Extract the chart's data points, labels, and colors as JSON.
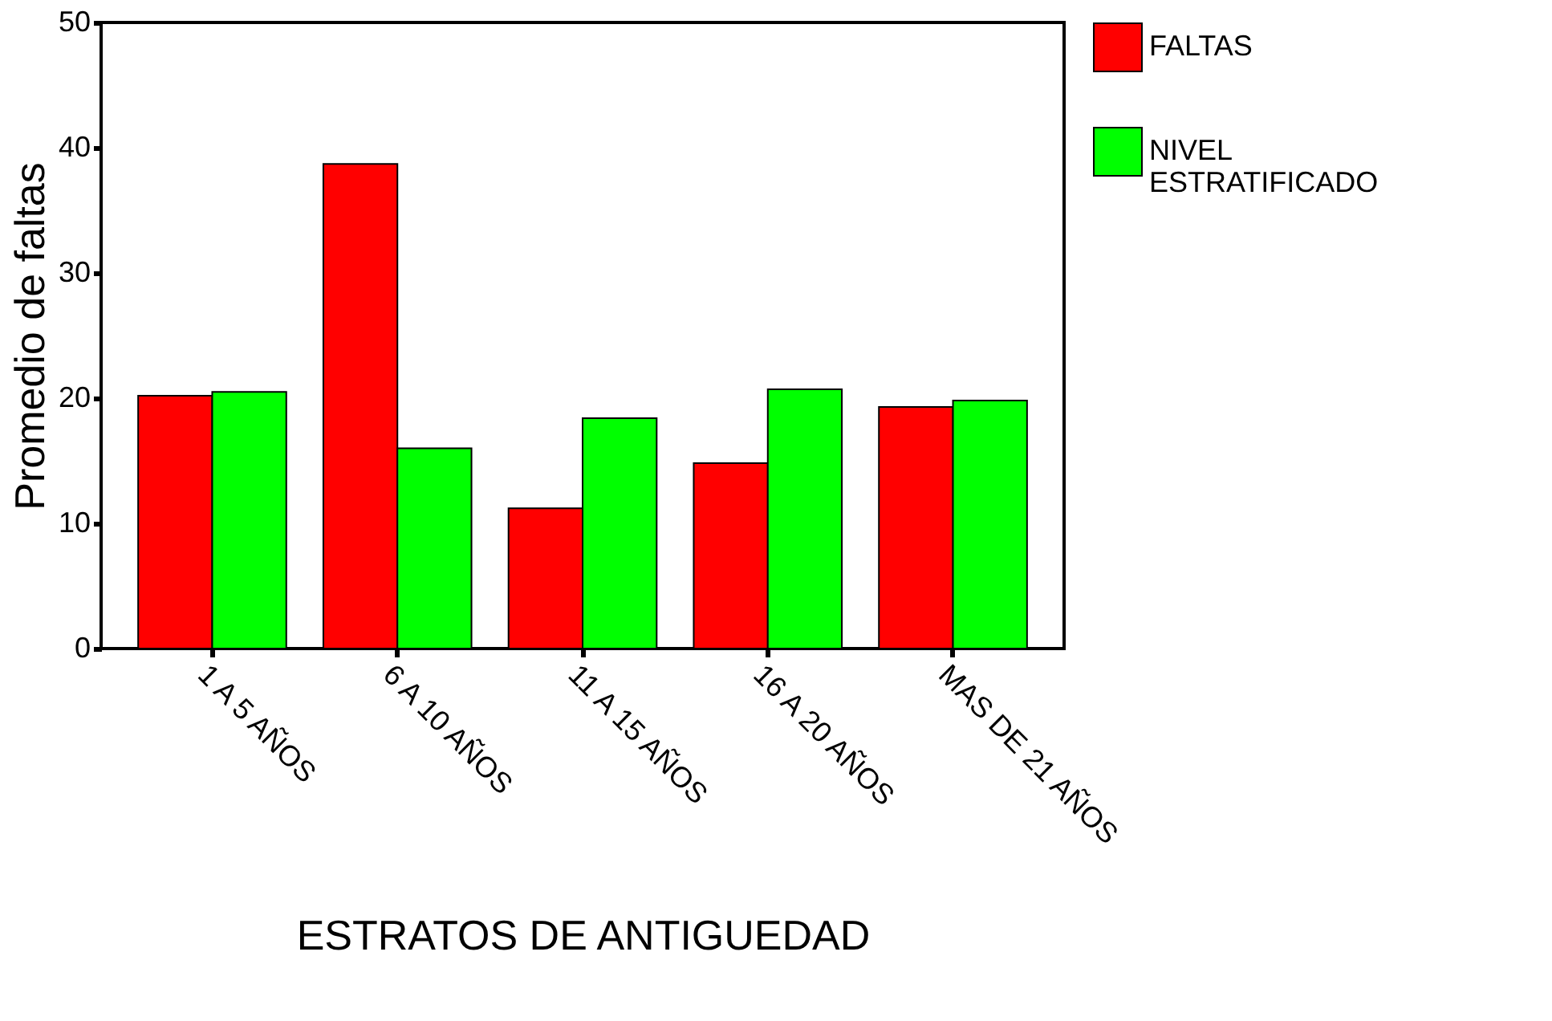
{
  "chart_data": {
    "type": "bar",
    "xlabel": "ESTRATOS DE ANTIGUEDAD",
    "ylabel": "Promedio de faltas",
    "categories": [
      "1 A 5 AÑOS",
      "6 A 10 AÑOS",
      "11 A 15 AÑOS",
      "16 A 20 AÑOS",
      "MAS DE 21 AÑOS"
    ],
    "series": [
      {
        "name": "FALTAS",
        "color": "#ff0000",
        "values": [
          20.2,
          38.7,
          11.2,
          14.8,
          19.3
        ]
      },
      {
        "name": "NIVEL ESTRATIFICADO",
        "color": "#00ff00",
        "values": [
          20.5,
          16.0,
          18.4,
          20.7,
          19.8
        ]
      }
    ],
    "ylim": [
      0,
      50
    ],
    "yticks": [
      0,
      10,
      20,
      30,
      40,
      50
    ],
    "grid": false,
    "legend": "right"
  }
}
